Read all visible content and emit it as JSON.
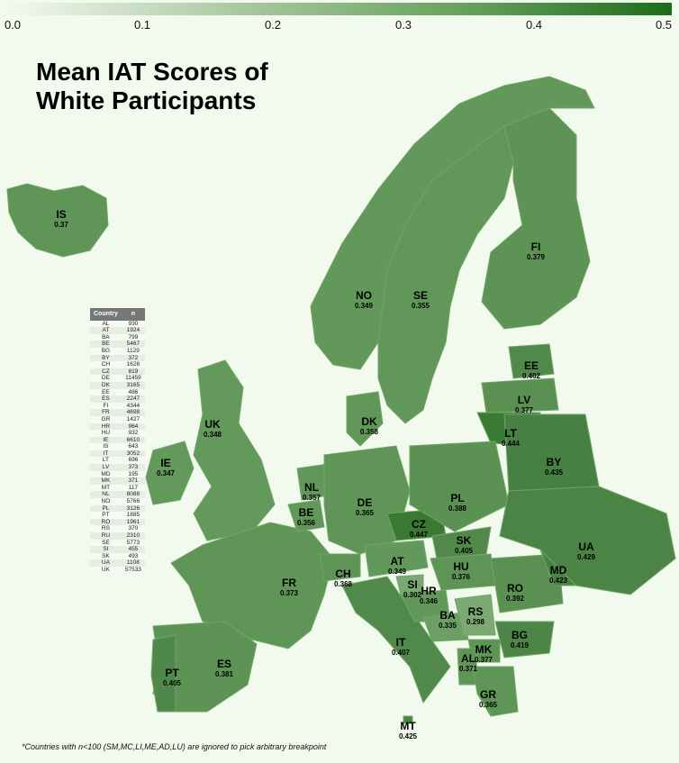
{
  "title_line1": "Mean IAT Scores of",
  "title_line2": "White Participants",
  "scale": {
    "ticks": [
      "0.0",
      "0.1",
      "0.2",
      "0.3",
      "0.4",
      "0.5"
    ],
    "colors": {
      "low": "#f3f8ef",
      "high": "#1f6b1c"
    }
  },
  "countries": [
    {
      "code": "IS",
      "value": "0.37"
    },
    {
      "code": "NO",
      "value": "0.349"
    },
    {
      "code": "SE",
      "value": "0.355"
    },
    {
      "code": "FI",
      "value": "0.379"
    },
    {
      "code": "EE",
      "value": "0.402"
    },
    {
      "code": "LV",
      "value": "0.377"
    },
    {
      "code": "LT",
      "value": "0.444"
    },
    {
      "code": "DK",
      "value": "0.358"
    },
    {
      "code": "UK",
      "value": "0.348"
    },
    {
      "code": "IE",
      "value": "0.347"
    },
    {
      "code": "BY",
      "value": "0.435"
    },
    {
      "code": "NL",
      "value": "0.357"
    },
    {
      "code": "BE",
      "value": "0.356"
    },
    {
      "code": "DE",
      "value": "0.365"
    },
    {
      "code": "PL",
      "value": "0.388"
    },
    {
      "code": "CZ",
      "value": "0.447"
    },
    {
      "code": "SK",
      "value": "0.405"
    },
    {
      "code": "UA",
      "value": "0.429"
    },
    {
      "code": "FR",
      "value": "0.373"
    },
    {
      "code": "CH",
      "value": "0.368"
    },
    {
      "code": "AT",
      "value": "0.349"
    },
    {
      "code": "SI",
      "value": "0.302"
    },
    {
      "code": "HR",
      "value": "0.346"
    },
    {
      "code": "HU",
      "value": "0.376"
    },
    {
      "code": "RO",
      "value": "0.392"
    },
    {
      "code": "MD",
      "value": "0.423"
    },
    {
      "code": "BA",
      "value": "0.335"
    },
    {
      "code": "RS",
      "value": "0.298"
    },
    {
      "code": "BG",
      "value": "0.419"
    },
    {
      "code": "IT",
      "value": "0.407"
    },
    {
      "code": "MK",
      "value": "0.377"
    },
    {
      "code": "AL",
      "value": "0.371"
    },
    {
      "code": "GR",
      "value": "0.365"
    },
    {
      "code": "ES",
      "value": "0.381"
    },
    {
      "code": "PT",
      "value": "0.405"
    },
    {
      "code": "MT",
      "value": "0.425"
    }
  ],
  "table": {
    "headers": [
      "Country",
      "n"
    ],
    "rows": [
      [
        "AL",
        "930"
      ],
      [
        "AT",
        "1924"
      ],
      [
        "BA",
        "799"
      ],
      [
        "BE",
        "5467"
      ],
      [
        "BG",
        "1129"
      ],
      [
        "BY",
        "372"
      ],
      [
        "CH",
        "1628"
      ],
      [
        "CZ",
        "819"
      ],
      [
        "DE",
        "11459"
      ],
      [
        "DK",
        "3165"
      ],
      [
        "EE",
        "486"
      ],
      [
        "ES",
        "2247"
      ],
      [
        "FI",
        "4344"
      ],
      [
        "FR",
        "4698"
      ],
      [
        "GR",
        "1427"
      ],
      [
        "HR",
        "964"
      ],
      [
        "HU",
        "932"
      ],
      [
        "IE",
        "6610"
      ],
      [
        "IS",
        "643"
      ],
      [
        "IT",
        "3052"
      ],
      [
        "LT",
        "696"
      ],
      [
        "LV",
        "373"
      ],
      [
        "MD",
        "195"
      ],
      [
        "MK",
        "371"
      ],
      [
        "MT",
        "117"
      ],
      [
        "NL",
        "8088"
      ],
      [
        "NO",
        "5766"
      ],
      [
        "PL",
        "3126"
      ],
      [
        "PT",
        "1885"
      ],
      [
        "RO",
        "1961"
      ],
      [
        "RS",
        "370"
      ],
      [
        "RU",
        "2310"
      ],
      [
        "SE",
        "5773"
      ],
      [
        "SI",
        "455"
      ],
      [
        "SK",
        "493"
      ],
      [
        "UA",
        "1108"
      ],
      [
        "UK",
        "57533"
      ]
    ]
  },
  "footnote": "*Countries with n<100 (SM,MC,LI,ME,AD,LU) are ignored to pick arbitrary breakpoint"
}
